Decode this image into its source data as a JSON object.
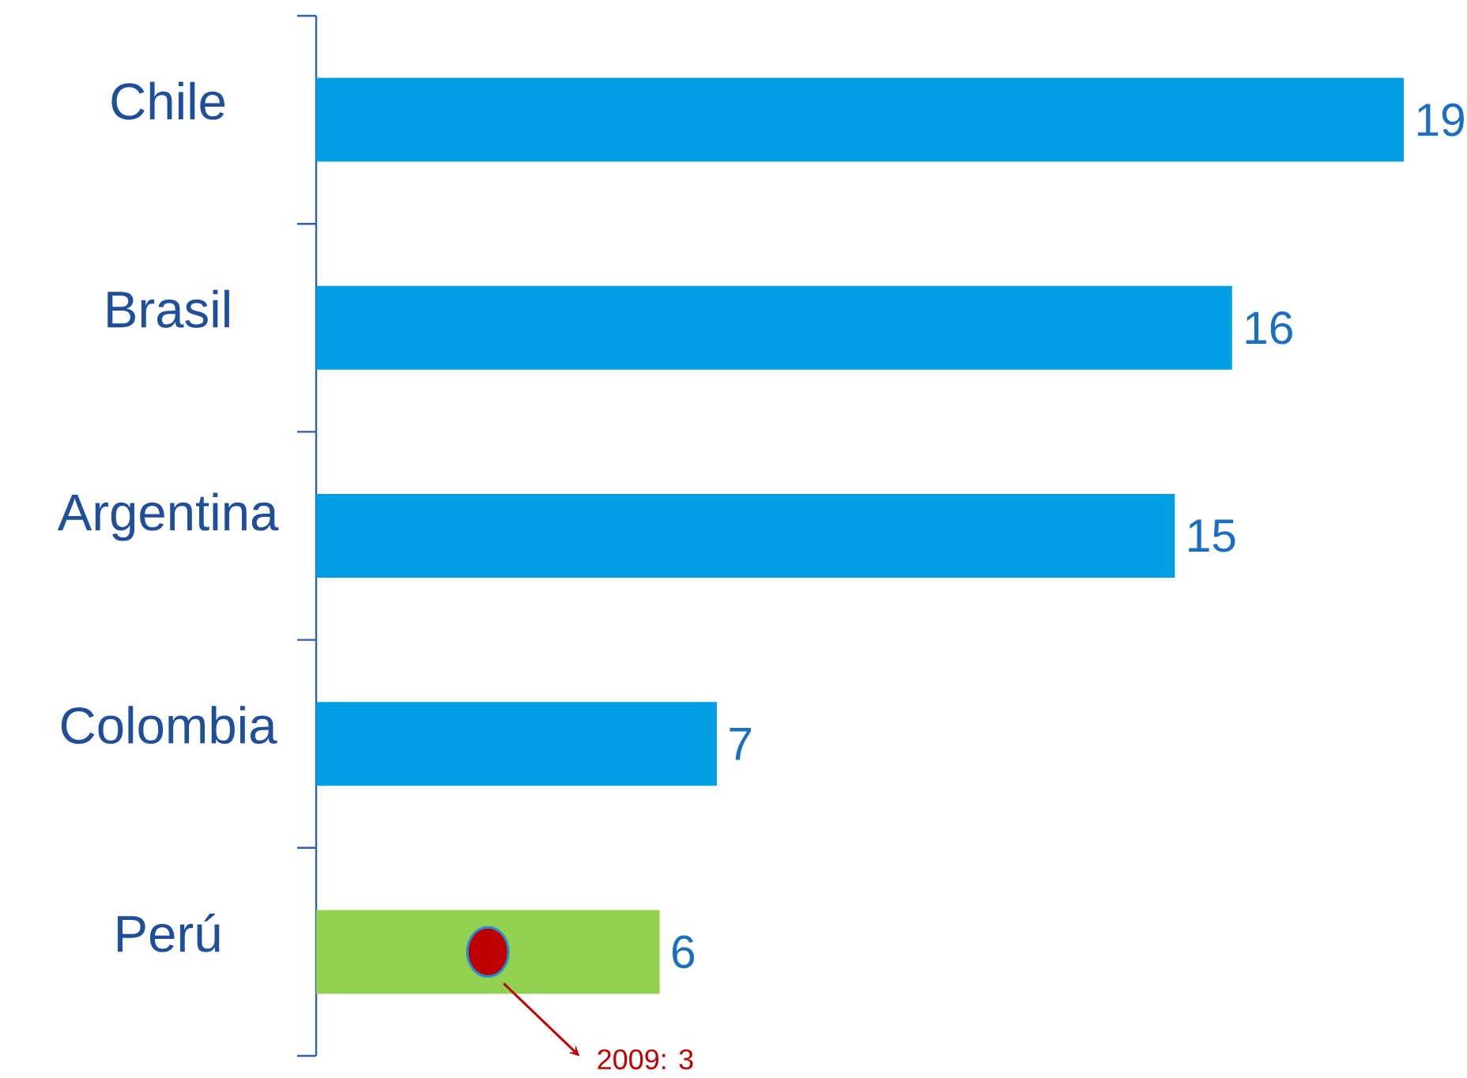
{
  "chart_data": {
    "type": "bar",
    "orientation": "horizontal",
    "categories": [
      "Chile",
      "Brasil",
      "Argentina",
      "Colombia",
      "Perú"
    ],
    "series": [
      {
        "values": [
          19,
          16,
          15,
          7,
          6
        ],
        "colors": [
          "#009fe3",
          "#009fe3",
          "#009fe3",
          "#009fe3",
          "#92d050"
        ],
        "value_labels": [
          "19",
          "16",
          "15",
          "7",
          "6"
        ]
      },
      {
        "type": "scatter",
        "values": [
          null,
          null,
          null,
          null,
          3
        ],
        "color": "#c00000",
        "marker": "circle"
      }
    ],
    "annotations": [
      "2009: 3"
    ]
  }
}
